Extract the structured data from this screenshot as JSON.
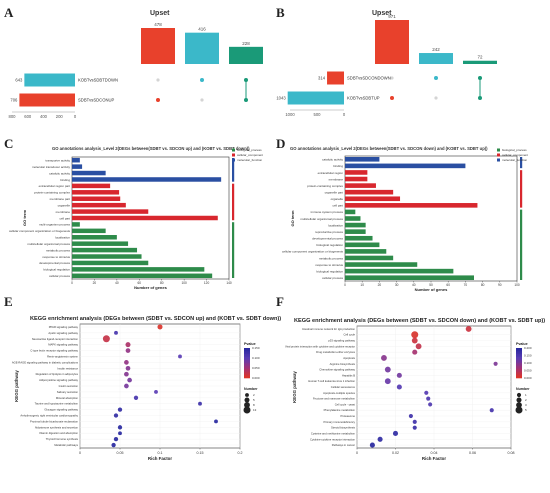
{
  "panels": {
    "A": {
      "letter": "A",
      "chart_data": {
        "type": "upset",
        "title": "Upset",
        "intersections": [
          {
            "value": 478,
            "color": "#e8412c",
            "dots": [
              1
            ]
          },
          {
            "value": 416,
            "color": "#3bb8c9",
            "dots": [
              0
            ]
          },
          {
            "value": 228,
            "color": "#1a9a78",
            "dots": [
              0,
              1
            ]
          }
        ],
        "sets": [
          {
            "name": "KOBTvsSDBTDOWN",
            "value": 643,
            "color": "#3bb8c9"
          },
          {
            "name": "SDBTvsSDCONUP",
            "value": 706,
            "color": "#e8412c"
          }
        ],
        "set_ticks": [
          "800",
          "600",
          "400",
          "200",
          "0"
        ]
      }
    },
    "B": {
      "letter": "B",
      "chart_data": {
        "type": "upset",
        "title": "Upset",
        "intersections": [
          {
            "value": 971,
            "color": "#e8412c",
            "dots": [
              1
            ]
          },
          {
            "value": 242,
            "color": "#3bb8c9",
            "dots": [
              0
            ]
          },
          {
            "value": 72,
            "color": "#1a9a78",
            "dots": [
              0,
              1
            ]
          }
        ],
        "sets": [
          {
            "name": "SDBTvsSDCONDOWN",
            "value": 314,
            "color": "#e8412c"
          },
          {
            "name": "KOBTvsSDBTUP",
            "value": 1043,
            "color": "#3bb8c9"
          }
        ],
        "set_ticks": [
          "1000",
          "500",
          "0"
        ]
      }
    },
    "C": {
      "letter": "C",
      "chart_data": {
        "type": "bar",
        "title": "GO annotations analysis_Level 2(DEGs between(SDBT vs. SDCON up) and (KOBT vs. SDBT down))",
        "xlabel": "Number of genes",
        "ylabel": "GO term",
        "xlim": [
          0,
          140
        ],
        "x_ticks": [
          "0",
          "20",
          "40",
          "60",
          "80",
          "100",
          "120",
          "140"
        ],
        "legend": [
          "biological_process",
          "cellular_component",
          "molecular_function"
        ],
        "colors": {
          "biological_process": "#2e8b4a",
          "cellular_component": "#d8272e",
          "molecular_function": "#2a4fa2"
        },
        "categories": [
          "transporter activity",
          "molecular transducer activity",
          "catalytic activity",
          "binding",
          "extracellular region part",
          "protein-containing complex",
          "membrane part",
          "organelle",
          "membrane",
          "cell part",
          "multi-organism process",
          "cellular component organization or biogenesis",
          "localization",
          "multicellular organismal process",
          "metabolic process",
          "response to stimulus",
          "developmental process",
          "biological regulation",
          "cellular process"
        ],
        "groups": [
          "molecular_function",
          "molecular_function",
          "molecular_function",
          "molecular_function",
          "cellular_component",
          "cellular_component",
          "cellular_component",
          "cellular_component",
          "cellular_component",
          "cellular_component",
          "biological_process",
          "biological_process",
          "biological_process",
          "biological_process",
          "biological_process",
          "biological_process",
          "biological_process",
          "biological_process",
          "biological_process"
        ],
        "values": [
          7,
          9,
          30,
          133,
          34,
          42,
          43,
          48,
          68,
          130,
          7,
          30,
          40,
          50,
          58,
          62,
          68,
          118,
          125
        ]
      }
    },
    "D": {
      "letter": "D",
      "chart_data": {
        "type": "bar",
        "title": "GO annotations analysis_Level 2(DEGs between(SDBT vs. SDCON down) and (KOBT vs. SDBT up))",
        "xlabel": "Number of genes",
        "ylabel": "GO term",
        "xlim": [
          0,
          100
        ],
        "x_ticks": [
          "0",
          "10",
          "20",
          "30",
          "40",
          "50",
          "60",
          "70",
          "80",
          "90",
          "100"
        ],
        "legend": [
          "biological_process",
          "cellular_component",
          "molecular_function"
        ],
        "colors": {
          "biological_process": "#2e8b4a",
          "cellular_component": "#d8272e",
          "molecular_function": "#2a4fa2"
        },
        "categories": [
          "catalytic activity",
          "binding",
          "extracellular region",
          "membrane",
          "protein-containing complex",
          "organelle part",
          "organelle",
          "cell part",
          "immune system process",
          "multicellular organismal process",
          "localization",
          "reproductive process",
          "developmental process",
          "biological regulation",
          "cellular component organization or biogenesis",
          "metabolic process",
          "response to stimulus",
          "biological regulation",
          "cellular process"
        ],
        "groups": [
          "molecular_function",
          "molecular_function",
          "cellular_component",
          "cellular_component",
          "cellular_component",
          "cellular_component",
          "cellular_component",
          "cellular_component",
          "biological_process",
          "biological_process",
          "biological_process",
          "biological_process",
          "biological_process",
          "biological_process",
          "biological_process",
          "biological_process",
          "biological_process",
          "biological_process",
          "biological_process"
        ],
        "values": [
          20,
          70,
          13,
          13,
          18,
          28,
          32,
          77,
          6,
          9,
          12,
          12,
          16,
          20,
          24,
          28,
          42,
          63,
          75
        ]
      }
    },
    "E": {
      "letter": "E",
      "chart_data": {
        "type": "scatter",
        "title": "KEGG enrichment analysis (DEGs between (SDBT vs. SDCON up) and (KOBT vs. SDBT down))",
        "xlabel": "Rich Factor",
        "ylabel": "KEGG pathway",
        "xlim": [
          0,
          0.2
        ],
        "x_ticks": [
          "0",
          "0.05",
          "0.1",
          "0.15",
          "0.2"
        ],
        "colorbar_title": "Pvalue",
        "colorbar_ticks": [
          "0.150",
          "0.100",
          "0.050",
          "0.000"
        ],
        "size_title": "Number",
        "size_legend": [
          "2",
          "5",
          "8",
          "13"
        ],
        "categories": [
          "PPAR signaling pathway",
          "Apelin signaling pathway",
          "Neuroactive ligand-receptor interaction",
          "MAPK signaling pathway",
          "C-type lectin receptor signaling pathway",
          "Renin-angiotensin system",
          "AGE-RAGE signaling pathway in diabetic complications",
          "Insulin resistance",
          "Regulation of lipolysis in adipocytes",
          "Adipocytokine signaling pathway",
          "Insulin secretion",
          "Salivary secretion",
          "Mineral absorption",
          "Taurine and hypotaurine metabolism",
          "Glucagon signaling pathway",
          "Arrhythmogenic right ventricular cardiomyopathy",
          "Proximal tubule bicarbonate reclamation",
          "Aldosterone synthesis and secretion",
          "Vitamin digestion and absorption",
          "Thyroid hormone synthesis",
          "Metabolic pathways"
        ],
        "x": [
          0.1,
          0.045,
          0.033,
          0.06,
          0.06,
          0.125,
          0.058,
          0.06,
          0.058,
          0.062,
          0.058,
          0.095,
          0.07,
          0.15,
          0.05,
          0.045,
          0.17,
          0.05,
          0.05,
          0.045,
          0.042
        ],
        "size": [
          5,
          2,
          13,
          5,
          4,
          2,
          4,
          4,
          4,
          4,
          4,
          2,
          3,
          2,
          3,
          3,
          2,
          3,
          2,
          3,
          3
        ],
        "pvalue": [
          0.002,
          0.12,
          0.02,
          0.04,
          0.06,
          0.1,
          0.06,
          0.07,
          0.07,
          0.08,
          0.08,
          0.1,
          0.12,
          0.13,
          0.14,
          0.14,
          0.15,
          0.15,
          0.16,
          0.17,
          0.18
        ]
      }
    },
    "F": {
      "letter": "F",
      "chart_data": {
        "type": "scatter",
        "title": "KEGG enrichment analysis (DEGs between (SDBT vs. SDCON down) and (KOBT vs. SDBT up))",
        "xlabel": "Rich Factor",
        "ylabel": "KEGG pathway",
        "xlim": [
          0,
          0.08
        ],
        "x_ticks": [
          "0",
          "0.02",
          "0.04",
          "0.06",
          "0.08"
        ],
        "colorbar_title": "Pvalue",
        "colorbar_ticks": [
          "0.200",
          "0.150",
          "0.100",
          "0.050",
          "0.000"
        ],
        "size_title": "Number",
        "size_legend": [
          "1",
          "2",
          "3",
          "5"
        ],
        "categories": [
          "Intestinal immune network for IgA production",
          "Cell cycle",
          "p53 signaling pathway",
          "Viral protein interaction with cytokine and cytokine receptor",
          "Drug metabolism-other enzymes",
          "Apoptosis",
          "Arginine biosynthesis",
          "Chemokine signaling pathway",
          "Hepatitis B",
          "Human T-cell leukemia virus 1 infection",
          "Cellular senescence",
          "Apoptosis-multiple species",
          "Fructose and mannose metabolism",
          "Cell cycle - yeast",
          "Phenylalanine metabolism",
          "Proteasome",
          "Primary immunodeficiency",
          "Steroid biosynthesis",
          "Cysteine and methionine metabolism",
          "Cytokine-cytokine receptor interaction",
          "Pathways in cancer"
        ],
        "x": [
          0.058,
          0.03,
          0.03,
          0.032,
          0.03,
          0.014,
          0.072,
          0.016,
          0.022,
          0.016,
          0.022,
          0.036,
          0.037,
          0.038,
          0.07,
          0.028,
          0.03,
          0.03,
          0.02,
          0.012,
          0.008
        ],
        "size": [
          3,
          5,
          3,
          3,
          2,
          3,
          1,
          3,
          2,
          3,
          2,
          1,
          1,
          1,
          1,
          1,
          1,
          1,
          2,
          2,
          2
        ],
        "pvalue": [
          0.02,
          0.005,
          0.02,
          0.03,
          0.06,
          0.09,
          0.1,
          0.11,
          0.11,
          0.12,
          0.14,
          0.14,
          0.15,
          0.15,
          0.16,
          0.17,
          0.17,
          0.18,
          0.19,
          0.19,
          0.2
        ]
      }
    }
  }
}
